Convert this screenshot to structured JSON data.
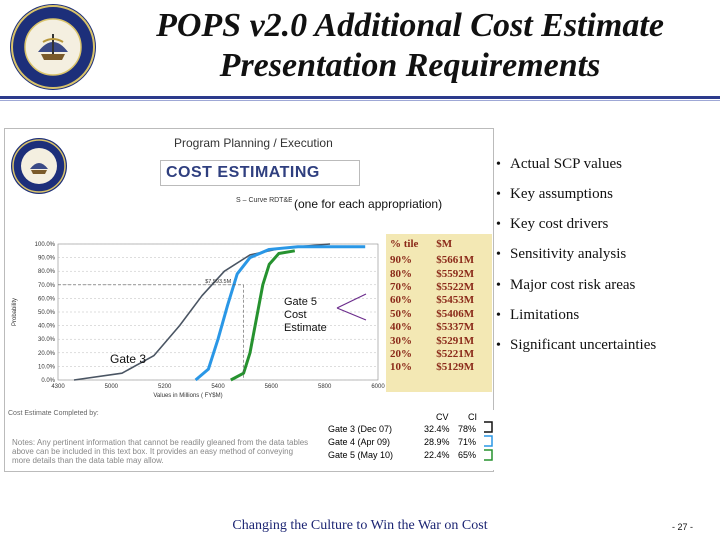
{
  "slide": {
    "title_line1": "POPS v2.0 Additional Cost Estimate",
    "title_line2": "Presentation Requirements",
    "footer": "Changing the Culture to Win the War on Cost",
    "page_number": "- 27 -"
  },
  "panel": {
    "program_title": "Program Planning / Execution",
    "cost_title": "COST ESTIMATING",
    "scurve_label": "S – Curve RDT&E",
    "appropriation_note": "(one for each appropriation)",
    "gate5_label": [
      "Gate 5",
      "Cost",
      "Estimate"
    ],
    "gate3_label": "Gate 3",
    "cost_completed_label": "Cost Estimate Completed by:",
    "notes_text": "Notes: Any pertinent information that cannot be readily gleaned from the data tables above can be included in this text box. It provides an easy method of conveying more details than the data table may allow.",
    "table": {
      "headers": [
        "% tile",
        "$M"
      ],
      "rows": [
        [
          "90%",
          "$5661M"
        ],
        [
          "80%",
          "$5592M"
        ],
        [
          "70%",
          "$5522M"
        ],
        [
          "60%",
          "$5453M"
        ],
        [
          "50%",
          "$5406M"
        ],
        [
          "40%",
          "$5337M"
        ],
        [
          "30%",
          "$5291M"
        ],
        [
          "20%",
          "$5221M"
        ],
        [
          "10%",
          "$5129M"
        ]
      ]
    },
    "gates_table": {
      "headers": [
        "CV",
        "CI"
      ],
      "rows": [
        [
          "Gate 3 (Dec 07)",
          "32.4%",
          "78%"
        ],
        [
          "Gate 4 (Apr 09)",
          "28.9%",
          "71%"
        ],
        [
          "Gate 5 (May 10)",
          "22.4%",
          "65%"
        ]
      ]
    }
  },
  "bullets": [
    "Actual SCP values",
    "Key assumptions",
    "Key cost drivers",
    "Sensitivity analysis",
    "Major cost risk areas",
    "Limitations",
    "Significant uncertainties"
  ],
  "chart_data": {
    "type": "line",
    "xlabel": "Values in Millions ( FY$M)",
    "ylabel": "Probability",
    "x_ticks": [
      "4300",
      "5000",
      "5200",
      "5400",
      "5600",
      "5800",
      "6000"
    ],
    "y_ticks": [
      "0.0%",
      "10.0%",
      "20.0%",
      "30.0%",
      "40.0%",
      "50.0%",
      "60.0%",
      "70.0%",
      "80.0%",
      "90.0%",
      "100.0%"
    ],
    "annotation": "$7,593.5M",
    "series": [
      {
        "color": "#4a5563",
        "points": [
          [
            0.05,
            0.0
          ],
          [
            0.2,
            0.05
          ],
          [
            0.3,
            0.18
          ],
          [
            0.38,
            0.4
          ],
          [
            0.45,
            0.62
          ],
          [
            0.52,
            0.8
          ],
          [
            0.6,
            0.92
          ],
          [
            0.7,
            0.97
          ],
          [
            0.85,
            1.0
          ]
        ]
      },
      {
        "color": "#2a97e6",
        "points": [
          [
            0.43,
            0.0
          ],
          [
            0.47,
            0.08
          ],
          [
            0.5,
            0.3
          ],
          [
            0.53,
            0.55
          ],
          [
            0.56,
            0.78
          ],
          [
            0.6,
            0.9
          ],
          [
            0.66,
            0.96
          ],
          [
            0.75,
            0.98
          ],
          [
            0.96,
            0.98
          ]
        ]
      },
      {
        "color": "#26922f",
        "points": [
          [
            0.54,
            0.0
          ],
          [
            0.58,
            0.05
          ],
          [
            0.6,
            0.2
          ],
          [
            0.62,
            0.45
          ],
          [
            0.64,
            0.7
          ],
          [
            0.66,
            0.85
          ],
          [
            0.69,
            0.93
          ],
          [
            0.74,
            0.95
          ]
        ]
      }
    ],
    "colors": {
      "accent_blue": "#2c3b8c",
      "footer": "#1c2573",
      "table_bg": "#f3e8b4",
      "table_text": "#8b2a1a"
    }
  }
}
